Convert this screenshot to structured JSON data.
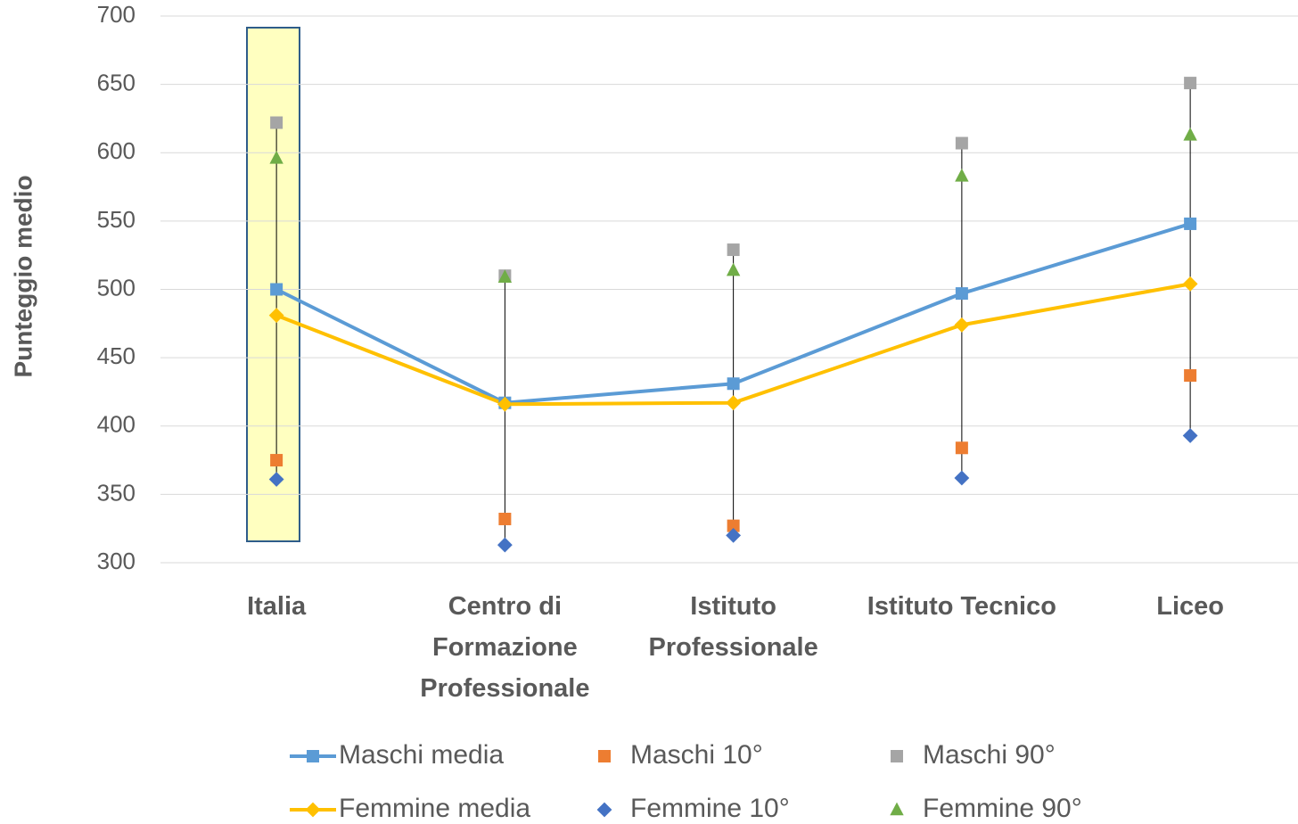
{
  "chart_data": {
    "type": "line",
    "y_label": "Punteggio medio",
    "categories": [
      "Italia",
      "Centro di Formazione Professionale",
      "Istituto Professionale",
      "Istituto Tecnico",
      "Liceo"
    ],
    "series": [
      {
        "name": "Maschi media",
        "color": "#5b9bd5",
        "marker": "square",
        "line": true,
        "values": [
          500,
          417,
          431,
          497,
          548
        ]
      },
      {
        "name": "Maschi 10°",
        "color": "#ed7d31",
        "marker": "square",
        "line": false,
        "values": [
          375,
          332,
          327,
          384,
          437
        ]
      },
      {
        "name": "Maschi 90°",
        "color": "#a5a5a5",
        "marker": "square",
        "line": false,
        "values": [
          622,
          510,
          529,
          607,
          651
        ]
      },
      {
        "name": "Femmine media",
        "color": "#ffc000",
        "marker": "diamond",
        "line": true,
        "values": [
          481,
          416,
          417,
          474,
          504
        ]
      },
      {
        "name": "Femmine 10°",
        "color": "#4472c4",
        "marker": "diamond",
        "line": false,
        "values": [
          361,
          313,
          320,
          362,
          393
        ]
      },
      {
        "name": "Femmine 90°",
        "color": "#70ad47",
        "marker": "triangle",
        "line": false,
        "values": [
          596,
          509,
          514,
          583,
          613
        ]
      }
    ],
    "ylim": [
      300,
      700
    ],
    "yticks": [
      300,
      350,
      400,
      450,
      500,
      550,
      600,
      650,
      700
    ],
    "grid": true,
    "high_low_lines": true
  }
}
